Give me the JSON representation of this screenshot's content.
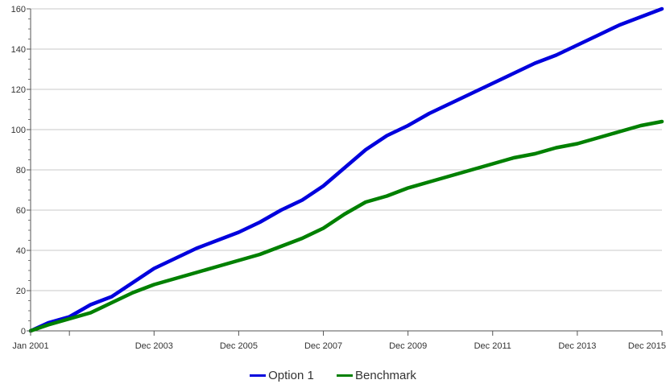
{
  "chart_data": {
    "type": "line",
    "title": "",
    "xlabel": "",
    "ylabel": "",
    "x_ticks": [
      "Jan 2001",
      "Dec 2003",
      "Dec 2005",
      "Dec 2007",
      "Dec 2009",
      "Dec 2011",
      "Dec 2013",
      "Dec 2015"
    ],
    "ylim": [
      0,
      160
    ],
    "y_ticks": [
      0,
      20,
      40,
      60,
      80,
      100,
      120,
      140,
      160
    ],
    "grid": "horizontal",
    "legend_position": "bottom-center",
    "x": [
      "2001-01",
      "2001-06",
      "2001-12",
      "2002-06",
      "2002-12",
      "2003-06",
      "2003-12",
      "2004-06",
      "2004-12",
      "2005-06",
      "2005-12",
      "2006-06",
      "2006-12",
      "2007-06",
      "2007-12",
      "2008-06",
      "2008-12",
      "2009-06",
      "2009-12",
      "2010-06",
      "2010-12",
      "2011-06",
      "2011-12",
      "2012-06",
      "2012-12",
      "2013-06",
      "2013-12",
      "2014-06",
      "2014-12",
      "2015-06",
      "2015-12"
    ],
    "series": [
      {
        "name": "Option 1",
        "color": "#0000dd",
        "values": [
          0,
          4,
          7,
          13,
          17,
          24,
          31,
          36,
          41,
          45,
          49,
          54,
          60,
          65,
          72,
          81,
          90,
          97,
          102,
          108,
          113,
          118,
          123,
          128,
          133,
          137,
          142,
          147,
          152,
          156,
          160
        ]
      },
      {
        "name": "Benchmark",
        "color": "#008000",
        "values": [
          0,
          3,
          6,
          9,
          14,
          19,
          23,
          26,
          29,
          32,
          35,
          38,
          42,
          46,
          51,
          58,
          64,
          67,
          71,
          74,
          77,
          80,
          83,
          86,
          88,
          91,
          93,
          96,
          99,
          102,
          104
        ]
      }
    ]
  }
}
